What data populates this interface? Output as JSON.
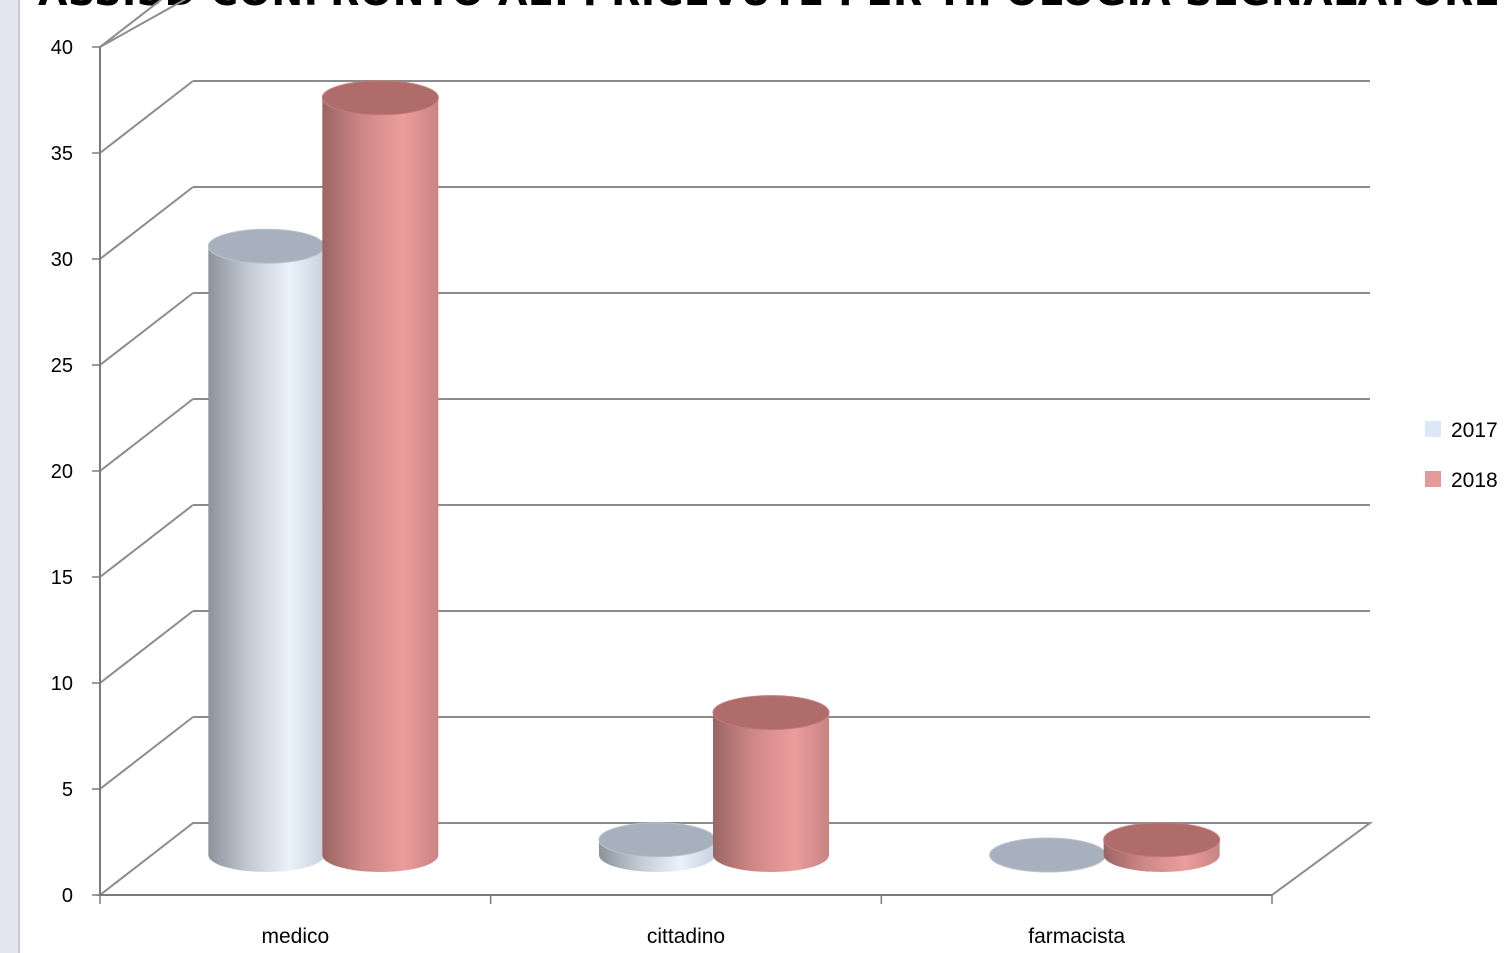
{
  "chart_data": {
    "type": "bar",
    "style": "3d-cylinder",
    "title": "ASSISD CONFRONTO AEI PRICEVUTE PER TIPOLOGIA SEGNALATORE",
    "categories": [
      "medico",
      "cittadino",
      "farmacista"
    ],
    "series": [
      {
        "name": "2017",
        "values": [
          29,
          1,
          0
        ],
        "color": "#dde8f6"
      },
      {
        "name": "2018",
        "values": [
          36,
          7,
          1
        ],
        "color": "#e39a98"
      }
    ],
    "ylim": [
      0,
      40
    ],
    "yticks": [
      "0",
      "5",
      "10",
      "15",
      "20",
      "25",
      "30",
      "35",
      "40"
    ],
    "grid": true,
    "legend": "right"
  }
}
